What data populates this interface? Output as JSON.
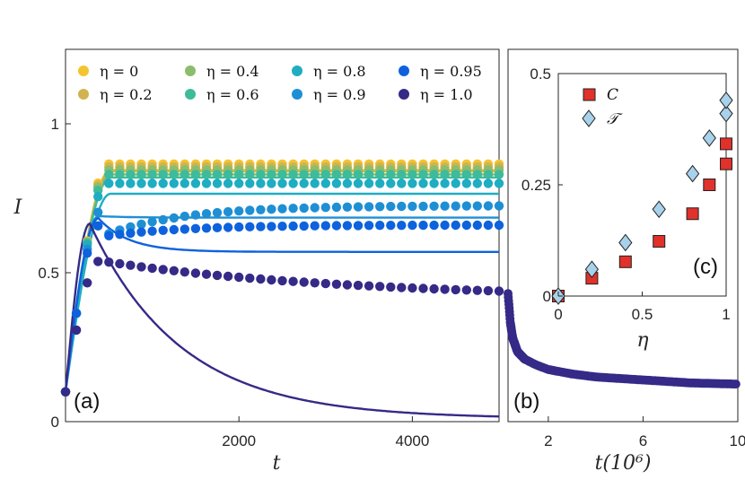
{
  "chart_data": [
    {
      "panel": "(a)",
      "type": "line",
      "xlabel": "t",
      "ylabel": "I",
      "xlim": [
        0,
        5000
      ],
      "ylim": [
        0,
        1.25
      ],
      "xticks": [
        "2000",
        "4000"
      ],
      "yticks": [
        "0",
        "0.5",
        "1"
      ],
      "legend_position": "top",
      "series": [
        {
          "name": "η = 0",
          "color": "#f4c430",
          "plateau": 0.865,
          "line_plateau": 0.845
        },
        {
          "name": "η = 0.2",
          "color": "#d1b34f",
          "plateau": 0.855,
          "line_plateau": 0.84
        },
        {
          "name": "η = 0.4",
          "color": "#8bbd6c",
          "plateau": 0.845,
          "line_plateau": 0.83
        },
        {
          "name": "η = 0.6",
          "color": "#3dbb9a",
          "plateau": 0.83,
          "line_plateau": 0.82
        },
        {
          "name": "η = 0.8",
          "color": "#1fadc2",
          "plateau": 0.8,
          "line_plateau": 0.765
        },
        {
          "name": "η = 0.9",
          "color": "#1f8fd4",
          "plateau": 0.725,
          "line_plateau": 0.685
        },
        {
          "name": "η = 0.95",
          "color": "#0e62dd",
          "plateau": 0.66,
          "line_plateau": 0.57
        },
        {
          "name": "η = 1.0",
          "color": "#352a87",
          "plateau": 0.43,
          "line_plateau": 0.01
        }
      ]
    },
    {
      "panel": "(b)",
      "type": "scatter",
      "xlabel": "t(10⁶)",
      "xlim": [
        0.3,
        10
      ],
      "ylim": [
        0,
        1.25
      ],
      "xticks": [
        "2",
        "6",
        "10"
      ],
      "series": [
        {
          "name": "η = 1.0",
          "color": "#352a87",
          "x": [
            0.3,
            0.4,
            0.5,
            0.7,
            1.0,
            1.5,
            2.0,
            3.0,
            4.0,
            5.0,
            6.0,
            7.0,
            8.0,
            9.0,
            10.0
          ],
          "y": [
            0.43,
            0.33,
            0.28,
            0.235,
            0.21,
            0.19,
            0.175,
            0.16,
            0.15,
            0.145,
            0.14,
            0.135,
            0.13,
            0.128,
            0.126
          ]
        }
      ]
    },
    {
      "panel": "(c)",
      "type": "scatter",
      "xlabel": "η",
      "xlim": [
        0,
        1
      ],
      "ylim": [
        0,
        0.5
      ],
      "xticks": [
        "0",
        "0.5",
        "1"
      ],
      "yticks": [
        "0",
        "0.25",
        "0.5"
      ],
      "legend_position": "top-left",
      "series": [
        {
          "name": "C",
          "color": "#e0312b",
          "marker": "square",
          "x": [
            0,
            0.2,
            0.4,
            0.6,
            0.8,
            0.9,
            1.0,
            1.0
          ],
          "y": [
            0,
            0.04,
            0.077,
            0.123,
            0.185,
            0.25,
            0.297,
            0.342
          ]
        },
        {
          "name": "𝒯",
          "color": "#a8d2ec",
          "marker": "diamond",
          "x": [
            0,
            0.2,
            0.4,
            0.6,
            0.8,
            0.9,
            1.0,
            1.0
          ],
          "y": [
            0,
            0.06,
            0.12,
            0.195,
            0.275,
            0.355,
            0.41,
            0.44
          ]
        }
      ]
    }
  ]
}
